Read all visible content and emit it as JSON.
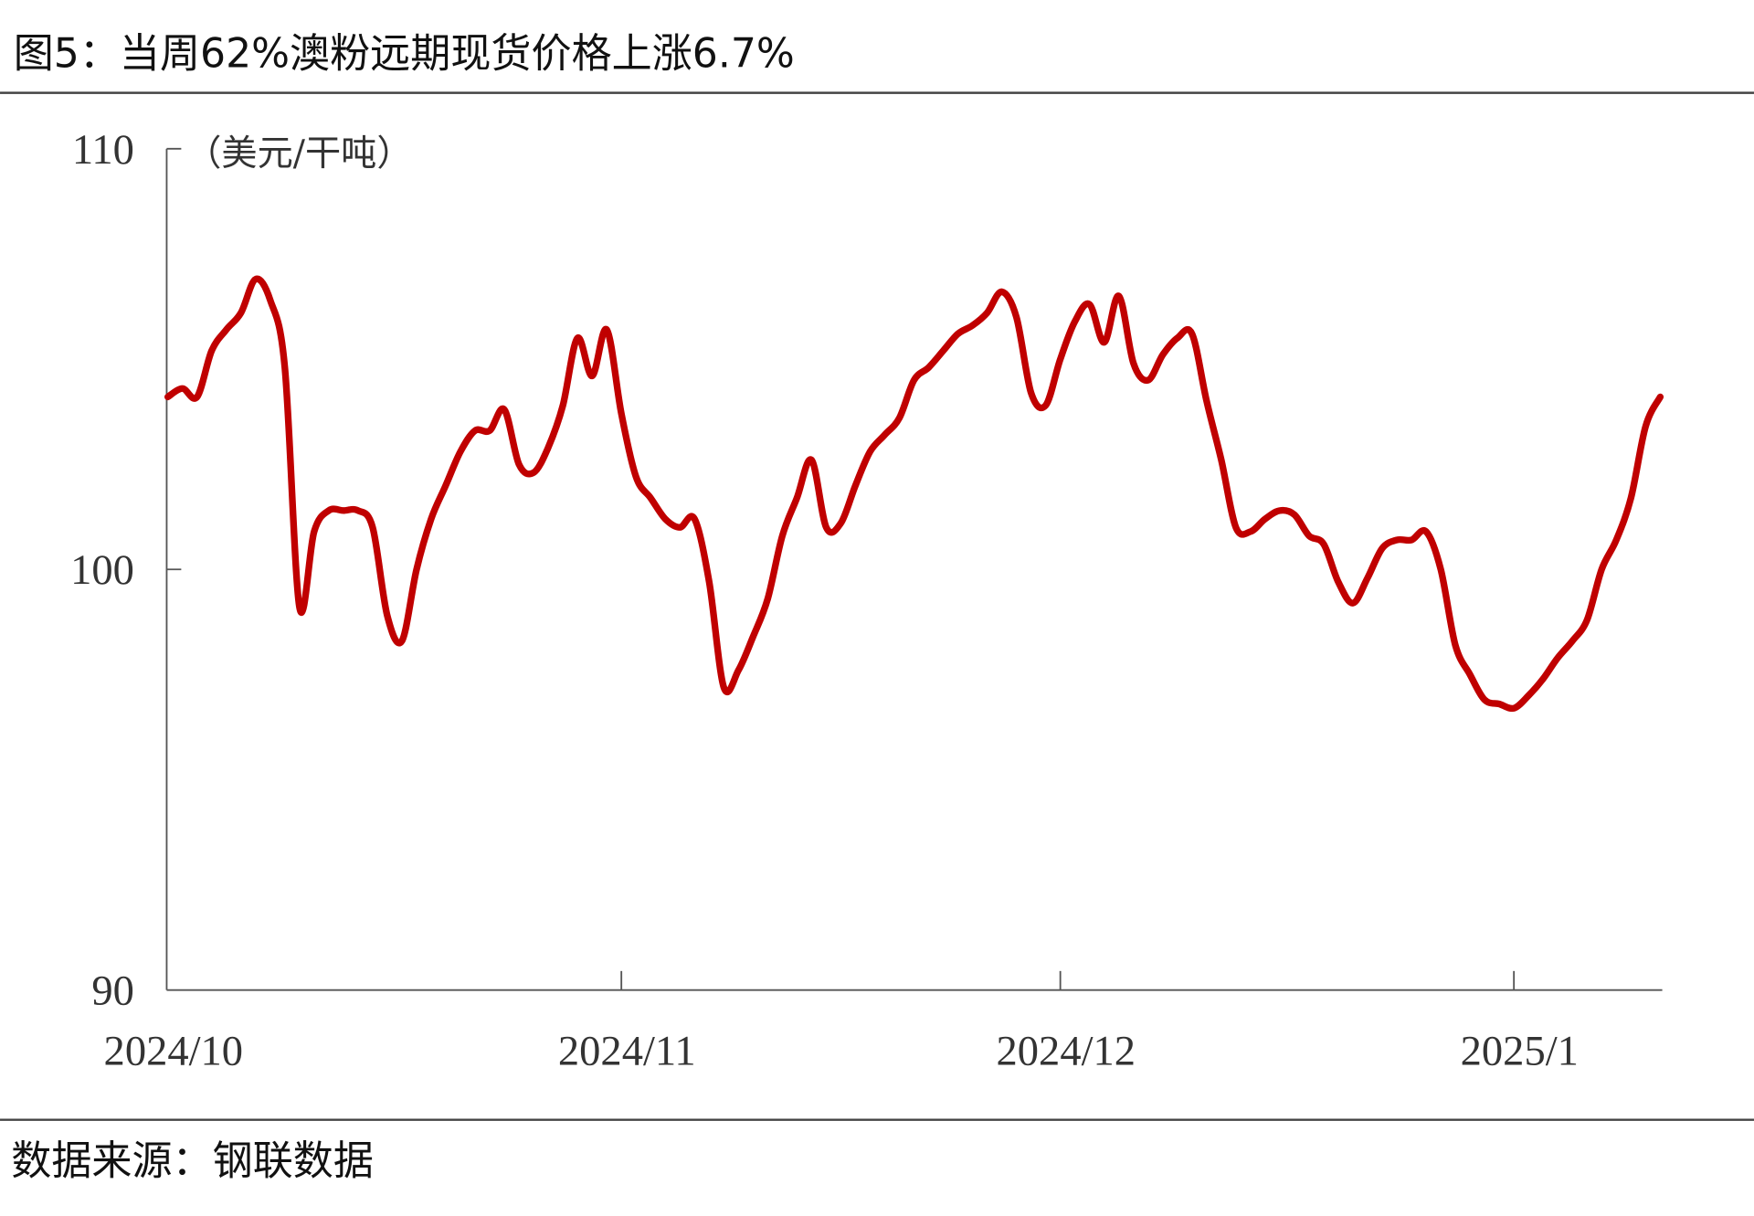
{
  "title": "图5：当周62%澳粉远期现货价格上涨6.7%",
  "source": "数据来源：钢联数据",
  "chart_data": {
    "type": "line",
    "title": "图5：当周62%澳粉远期现货价格上涨6.7%",
    "ylabel": "（美元/干吨）",
    "xlabel": "",
    "ylim": [
      90,
      110
    ],
    "yticks": [
      "90",
      "100",
      "110"
    ],
    "xticks": [
      {
        "label": "2024/10",
        "date": "2024-10-01"
      },
      {
        "label": "2024/11",
        "date": "2024-11-01"
      },
      {
        "label": "2024/12",
        "date": "2024-12-01"
      },
      {
        "label": "2025/1",
        "date": "2025-01-01"
      }
    ],
    "xlim": [
      "2024-10-01",
      "2025-01-11"
    ],
    "grid": false,
    "color": "#C00000",
    "series": [
      {
        "x": [
          "2024-10-01",
          "2024-10-02",
          "2024-10-03",
          "2024-10-04",
          "2024-10-05",
          "2024-10-06",
          "2024-10-07",
          "2024-10-08",
          "2024-10-09",
          "2024-10-10",
          "2024-10-11",
          "2024-10-12",
          "2024-10-13",
          "2024-10-14",
          "2024-10-15",
          "2024-10-16",
          "2024-10-17",
          "2024-10-18",
          "2024-10-19",
          "2024-10-20",
          "2024-10-21",
          "2024-10-22",
          "2024-10-23",
          "2024-10-24",
          "2024-10-25",
          "2024-10-26",
          "2024-10-27",
          "2024-10-28",
          "2024-10-29",
          "2024-10-30",
          "2024-10-31",
          "2024-11-01",
          "2024-11-02",
          "2024-11-03",
          "2024-11-04",
          "2024-11-05",
          "2024-11-06",
          "2024-11-07",
          "2024-11-08",
          "2024-11-09",
          "2024-11-10",
          "2024-11-11",
          "2024-11-12",
          "2024-11-13",
          "2024-11-14",
          "2024-11-15",
          "2024-11-16",
          "2024-11-17",
          "2024-11-18",
          "2024-11-19",
          "2024-11-20",
          "2024-11-21",
          "2024-11-22",
          "2024-11-23",
          "2024-11-24",
          "2024-11-25",
          "2024-11-26",
          "2024-11-27",
          "2024-11-28",
          "2024-11-29",
          "2024-11-30",
          "2024-12-01",
          "2024-12-02",
          "2024-12-03",
          "2024-12-04",
          "2024-12-05",
          "2024-12-06",
          "2024-12-07",
          "2024-12-08",
          "2024-12-09",
          "2024-12-10",
          "2024-12-11",
          "2024-12-12",
          "2024-12-13",
          "2024-12-14",
          "2024-12-15",
          "2024-12-16",
          "2024-12-17",
          "2024-12-18",
          "2024-12-19",
          "2024-12-20",
          "2024-12-21",
          "2024-12-22",
          "2024-12-23",
          "2024-12-24",
          "2024-12-25",
          "2024-12-26",
          "2024-12-27",
          "2024-12-28",
          "2024-12-29",
          "2024-12-30",
          "2024-12-31",
          "2025-01-01",
          "2025-01-02",
          "2025-01-03",
          "2025-01-04",
          "2025-01-05",
          "2025-01-06",
          "2025-01-07",
          "2025-01-08",
          "2025-01-09",
          "2025-01-10",
          "2025-01-11"
        ],
        "y": [
          104.1,
          104.3,
          104.1,
          105.2,
          105.7,
          106.1,
          106.9,
          106.4,
          104.8,
          99.1,
          100.9,
          101.4,
          101.4,
          101.4,
          101.0,
          98.9,
          98.3,
          100.0,
          101.2,
          102.0,
          102.8,
          103.3,
          103.3,
          103.8,
          102.5,
          102.3,
          102.9,
          103.9,
          105.5,
          104.6,
          105.7,
          103.7,
          102.2,
          101.7,
          101.2,
          101.0,
          101.2,
          99.7,
          97.2,
          97.6,
          98.4,
          99.3,
          100.8,
          101.7,
          102.6,
          101.0,
          101.1,
          102.0,
          102.8,
          103.2,
          103.6,
          104.5,
          104.8,
          105.2,
          105.6,
          105.8,
          106.1,
          106.6,
          106.0,
          104.2,
          103.9,
          105.0,
          105.9,
          106.3,
          105.4,
          106.5,
          104.9,
          104.5,
          105.1,
          105.5,
          105.6,
          104.0,
          102.6,
          101.0,
          100.9,
          101.2,
          101.4,
          101.3,
          100.8,
          100.6,
          99.7,
          99.2,
          99.8,
          100.5,
          100.7,
          100.7,
          100.9,
          100.0,
          98.2,
          97.5,
          96.9,
          96.8,
          96.7,
          97.0,
          97.4,
          97.9,
          98.3,
          98.8,
          100.0,
          100.7,
          101.7,
          103.4,
          104.1
        ]
      }
    ]
  }
}
